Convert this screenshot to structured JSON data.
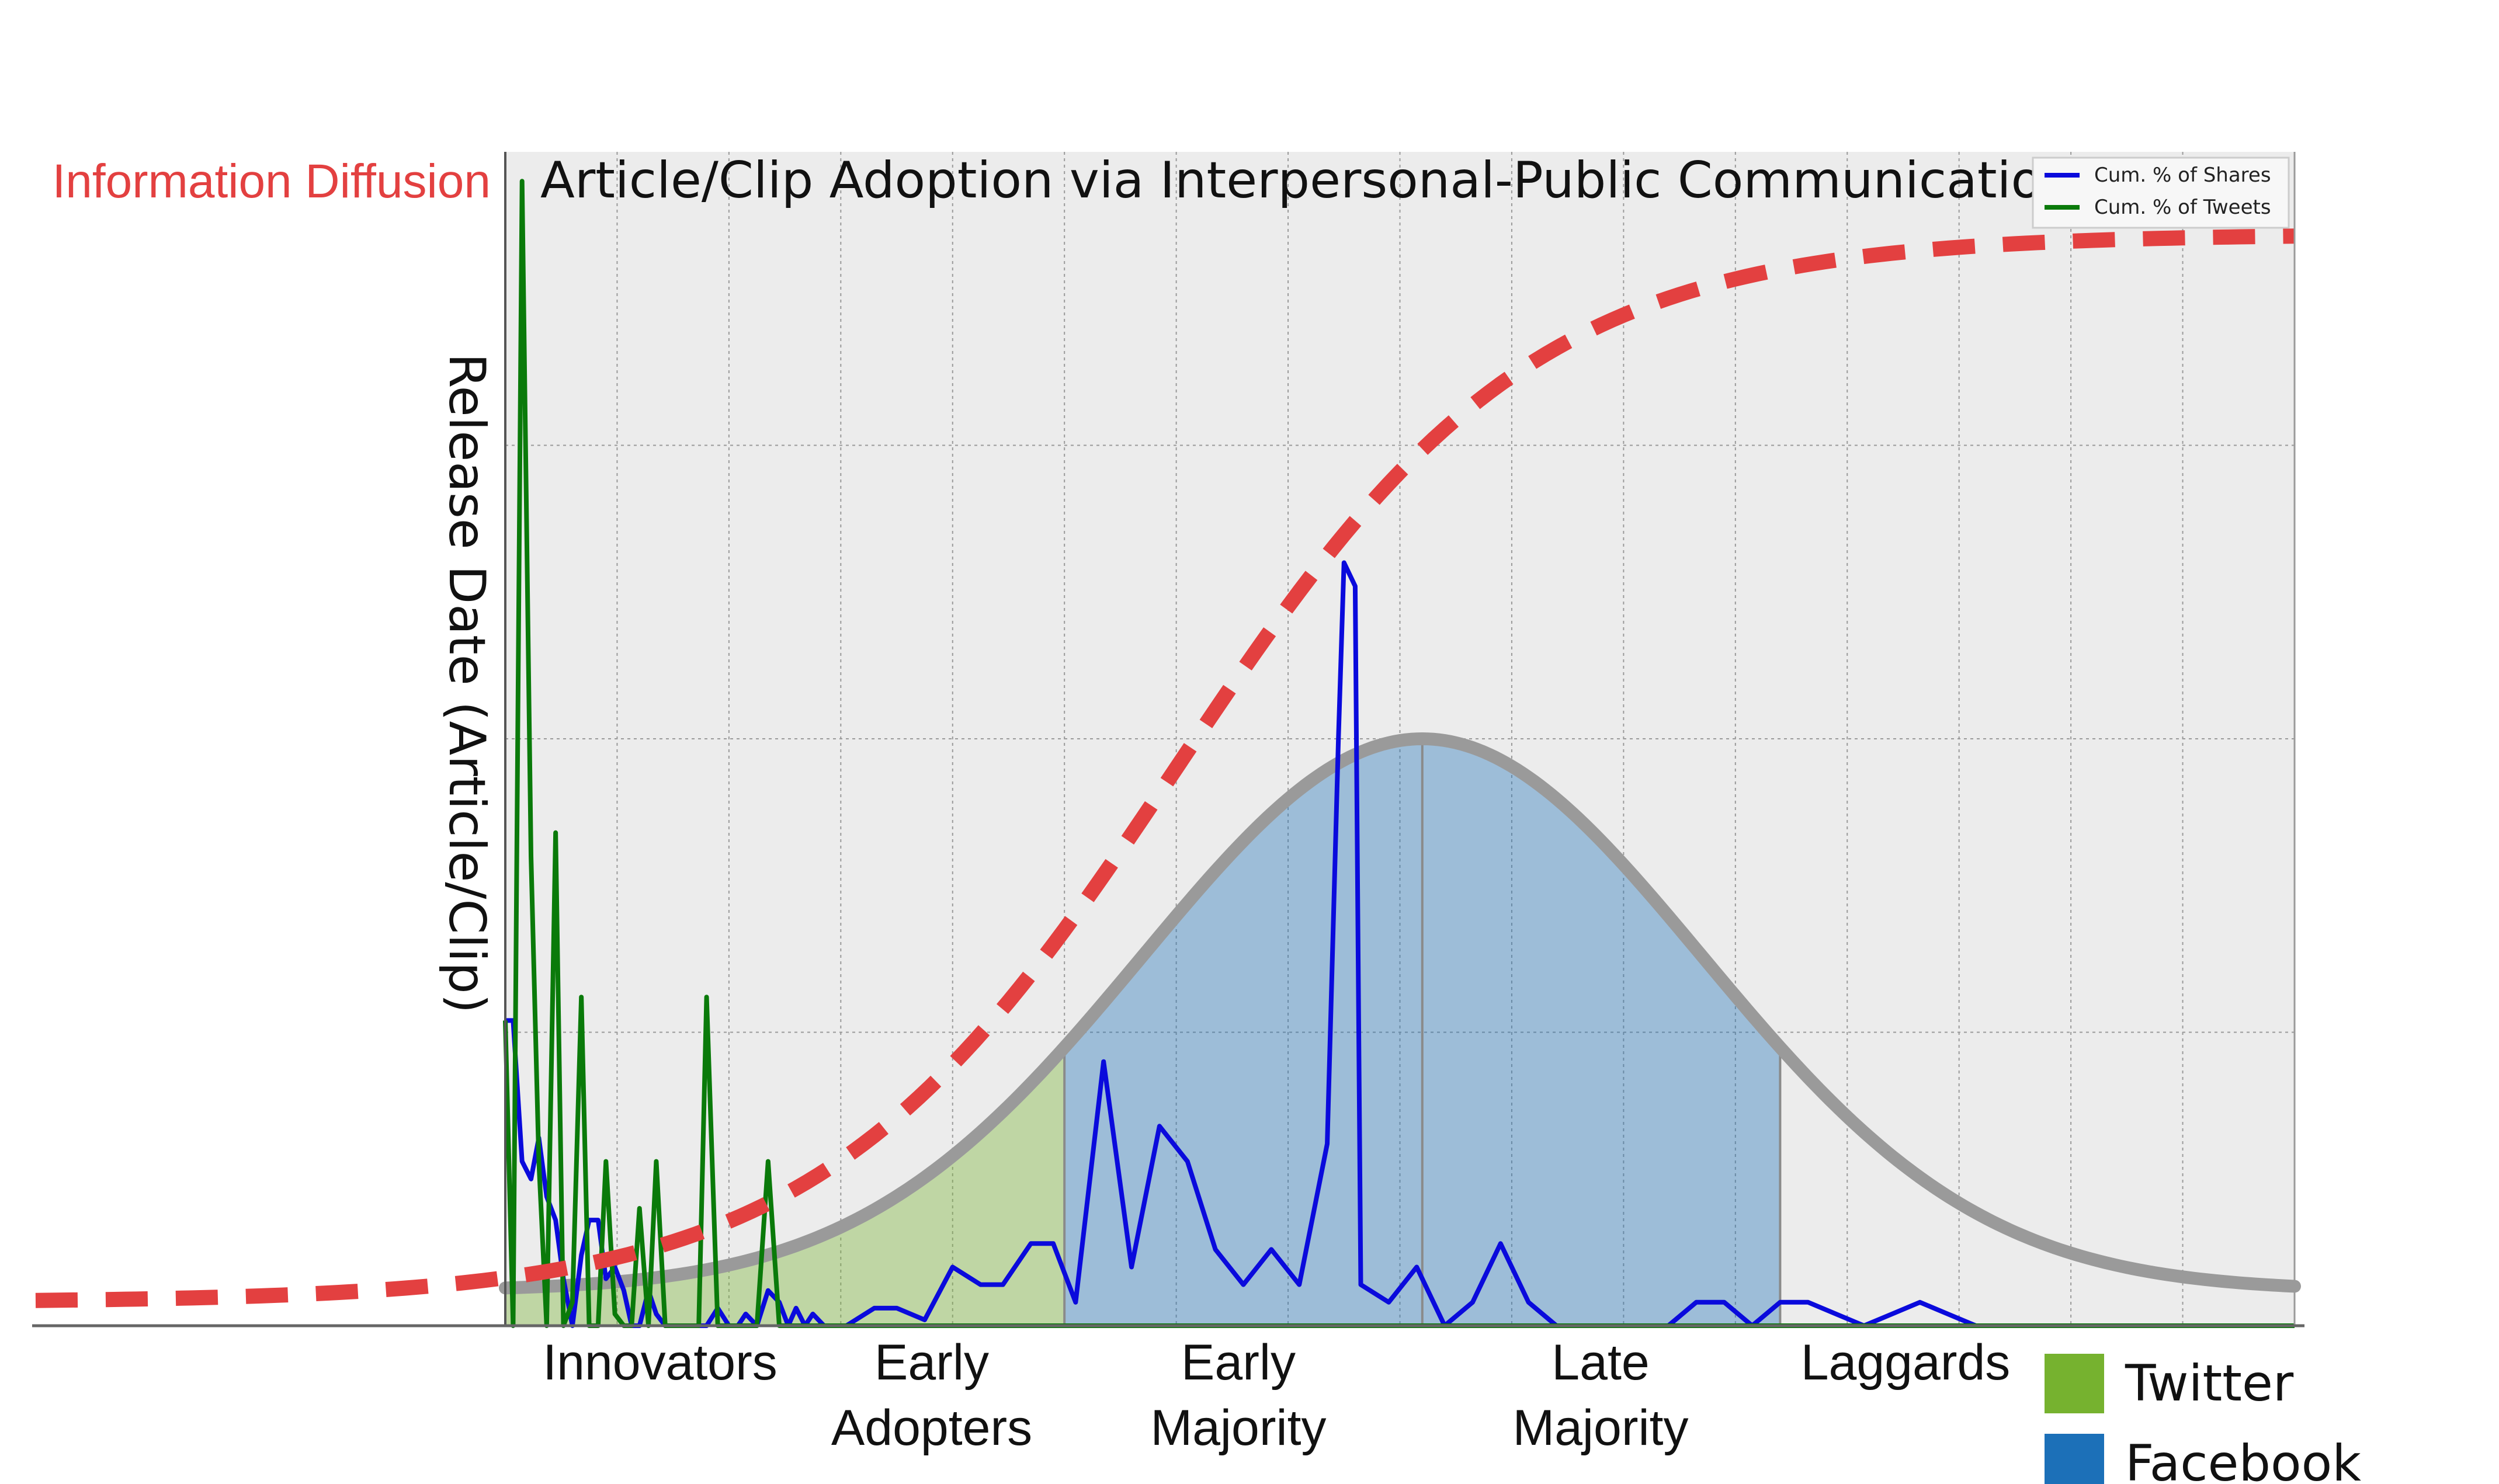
{
  "chart_data": {
    "type": "line",
    "title": "Article/Clip Adoption via Interpersonal-Public Communication",
    "overlay_label": "Information Diffusion",
    "ylabel": "Release Date (Article/Clip)",
    "xlabel": "",
    "grid": true,
    "legend": {
      "placement": "top-right",
      "entries": [
        {
          "name": "Cum. % of Shares",
          "color": "#0a0adc"
        },
        {
          "name": "Cum. % of Tweets",
          "color": "#0a7a0a"
        }
      ]
    },
    "xlim": [
      0,
      160
    ],
    "ylim": [
      0,
      100
    ],
    "categories": [
      "Innovators",
      "Early\nAdopters",
      "Early\nMajority",
      "Late\nMajority",
      "Laggards"
    ],
    "side_legend": [
      {
        "name": "Twitter",
        "color": "#76b22f"
      },
      {
        "name": "Facebook",
        "color": "#1c70b8"
      }
    ],
    "regions": [
      {
        "name": "Twitter",
        "from": 0,
        "to": 50,
        "color": "#76b22f"
      },
      {
        "name": "Facebook",
        "from": 50,
        "to": 114,
        "color": "#1c70b8"
      }
    ],
    "bell_curve": {
      "mean": 82,
      "sd": 25,
      "peak": 50,
      "base": 3
    },
    "series": [
      {
        "name": "Cum. % of Shares",
        "color": "#0a0adc",
        "x": [
          0,
          0.7,
          1.5,
          2.3,
          3,
          3.7,
          4.5,
          5.2,
          6,
          6.8,
          7.5,
          8.3,
          9,
          9.8,
          10.6,
          11.3,
          12,
          12.8,
          13.5,
          14.3,
          15,
          15.8,
          16.5,
          17.3,
          18,
          19,
          20,
          20.8,
          21.5,
          22.5,
          23.5,
          24.5,
          25.3,
          26,
          26.8,
          27.5,
          28.5,
          29.3,
          30.5,
          33,
          35,
          37.5,
          40,
          42.5,
          44.5,
          47,
          49,
          51,
          53.5,
          56,
          58.5,
          61,
          63.5,
          66,
          68.5,
          71,
          73.5,
          74.5,
          75,
          76,
          76.5,
          79,
          81.5,
          84,
          86.5,
          89,
          91.5,
          94,
          96.5,
          99,
          101.5,
          104,
          106.5,
          109,
          111.5,
          114,
          116.5,
          119,
          121.5,
          124,
          126.5,
          129,
          131.5,
          134,
          140,
          150,
          160
        ],
        "values": [
          26,
          26,
          14,
          12.5,
          16,
          11,
          9,
          4,
          0,
          6,
          9,
          9,
          4,
          5,
          3,
          0,
          0,
          3,
          1,
          0,
          0,
          0,
          0,
          0,
          0,
          1.5,
          0,
          0,
          1,
          0,
          3,
          2,
          0,
          1.5,
          0,
          1,
          0,
          0,
          0,
          1.5,
          1.5,
          0.5,
          5,
          3.5,
          3.5,
          7,
          7,
          2,
          22.5,
          5,
          17,
          14,
          6.5,
          3.5,
          6.5,
          3.5,
          15.5,
          50,
          65,
          63,
          3.5,
          2,
          5,
          0,
          2,
          7,
          2,
          0,
          0,
          0,
          0,
          0,
          2,
          2,
          0,
          2,
          2,
          1,
          0,
          1,
          2,
          1,
          0,
          0,
          0,
          0,
          0
        ]
      },
      {
        "name": "Cum. % of Tweets",
        "color": "#0a7a0a",
        "x": [
          0,
          0.7,
          1.5,
          2.3,
          3,
          3.7,
          4.5,
          5.2,
          6,
          6.8,
          7.5,
          8.3,
          9,
          9.8,
          10.6,
          11.3,
          12,
          12.8,
          13.5,
          14.3,
          15,
          15.8,
          16.5,
          17.3,
          18,
          19,
          20,
          20.8,
          21.5,
          22.5,
          23.5,
          24.5,
          25.3,
          26,
          26.8,
          27.5,
          28.5,
          29.3,
          30.5,
          40,
          42.5,
          44.5,
          47,
          49,
          51,
          53.5,
          56,
          58.5,
          61,
          63.5,
          66,
          68.5,
          71,
          73.5,
          76,
          78.5,
          81,
          90,
          100,
          110,
          120,
          130,
          140,
          150,
          160
        ],
        "values": [
          26,
          0,
          97.5,
          40,
          14,
          0,
          42,
          0,
          2,
          28,
          0,
          0,
          14,
          1,
          0,
          0,
          10,
          0,
          14,
          0,
          0,
          0,
          0,
          0,
          28,
          0,
          0,
          0,
          0,
          0,
          14,
          0,
          0,
          0,
          0,
          0,
          0,
          0,
          0,
          0,
          0,
          0,
          0,
          0,
          0,
          0,
          0,
          0,
          0,
          0,
          0,
          0,
          0,
          0,
          0,
          0,
          0,
          0,
          0,
          0,
          0,
          0,
          0,
          0,
          0
        ]
      }
    ],
    "diffusion_curve": {
      "color": "#e34040",
      "midpoint": 60,
      "start": 2,
      "end": 93
    }
  }
}
